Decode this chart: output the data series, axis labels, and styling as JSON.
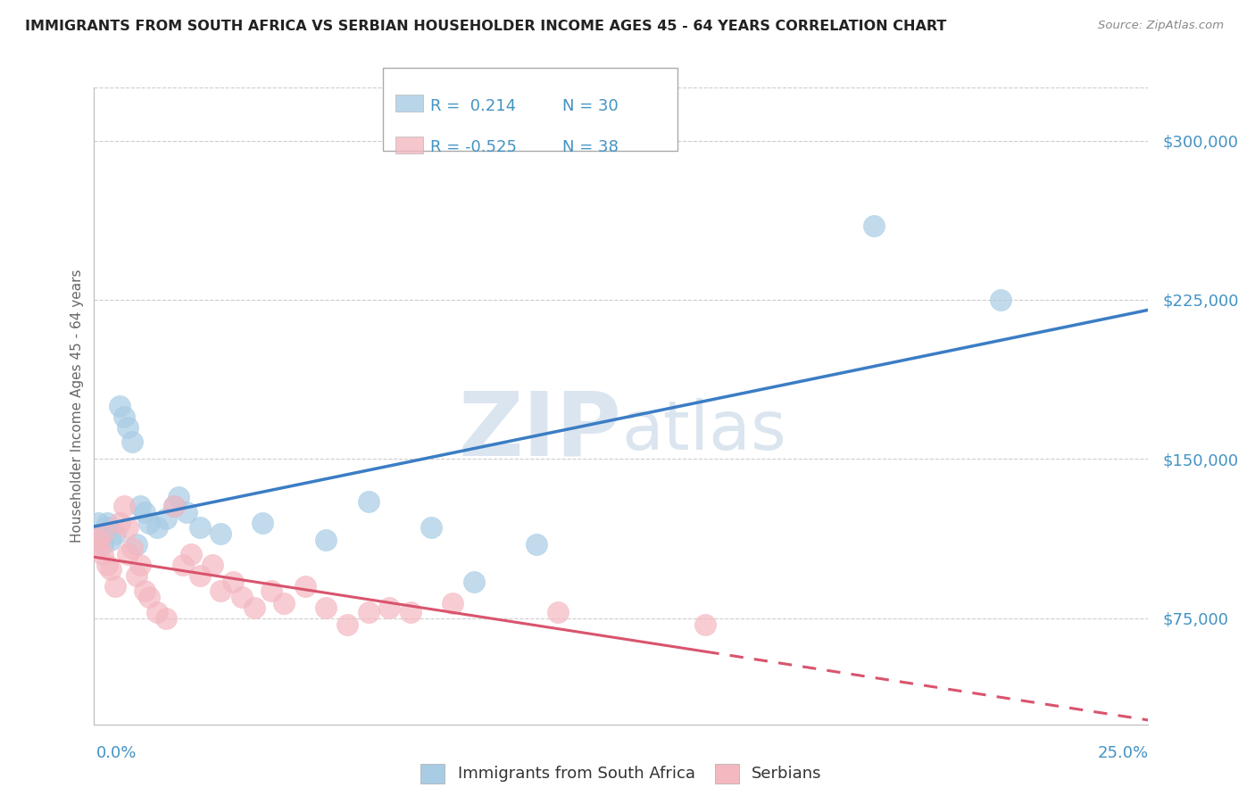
{
  "title": "IMMIGRANTS FROM SOUTH AFRICA VS SERBIAN HOUSEHOLDER INCOME AGES 45 - 64 YEARS CORRELATION CHART",
  "source": "Source: ZipAtlas.com",
  "ylabel": "Householder Income Ages 45 - 64 years",
  "xlim": [
    0.0,
    0.25
  ],
  "ylim": [
    25000,
    325000
  ],
  "yticks": [
    75000,
    150000,
    225000,
    300000
  ],
  "ytick_labels": [
    "$75,000",
    "$150,000",
    "$225,000",
    "$300,000"
  ],
  "xtick_left_label": "0.0%",
  "xtick_right_label": "25.0%",
  "r_blue": "0.214",
  "n_blue": "30",
  "r_pink": "-0.525",
  "n_pink": "38",
  "blue_dot_color": "#a8cce4",
  "blue_line_color": "#3b7dc4",
  "pink_dot_color": "#f4b8c1",
  "pink_line_color": "#d9546e",
  "legend_label_blue": "Immigrants from South Africa",
  "legend_label_pink": "Serbians",
  "watermark_zip": "ZIP",
  "watermark_atlas": "atlas",
  "title_color": "#222222",
  "axis_label_color": "#4393c3",
  "ylabel_color": "#666666",
  "blue_scatter_x": [
    0.001,
    0.001,
    0.002,
    0.003,
    0.003,
    0.004,
    0.005,
    0.006,
    0.007,
    0.008,
    0.009,
    0.01,
    0.011,
    0.012,
    0.013,
    0.015,
    0.017,
    0.019,
    0.02,
    0.022,
    0.025,
    0.03,
    0.04,
    0.055,
    0.065,
    0.08,
    0.09,
    0.105,
    0.185,
    0.215
  ],
  "blue_scatter_y": [
    115000,
    120000,
    110000,
    120000,
    118000,
    112000,
    115000,
    175000,
    170000,
    165000,
    158000,
    110000,
    128000,
    125000,
    120000,
    118000,
    122000,
    128000,
    132000,
    125000,
    118000,
    115000,
    120000,
    112000,
    130000,
    118000,
    92000,
    110000,
    260000,
    225000
  ],
  "pink_scatter_x": [
    0.001,
    0.001,
    0.002,
    0.002,
    0.003,
    0.004,
    0.005,
    0.006,
    0.007,
    0.008,
    0.008,
    0.009,
    0.01,
    0.011,
    0.012,
    0.013,
    0.015,
    0.017,
    0.019,
    0.021,
    0.023,
    0.025,
    0.028,
    0.03,
    0.033,
    0.035,
    0.038,
    0.042,
    0.045,
    0.05,
    0.055,
    0.06,
    0.065,
    0.07,
    0.075,
    0.085,
    0.11,
    0.145
  ],
  "pink_scatter_y": [
    108000,
    112000,
    105000,
    115000,
    100000,
    98000,
    90000,
    120000,
    128000,
    118000,
    105000,
    108000,
    95000,
    100000,
    88000,
    85000,
    78000,
    75000,
    128000,
    100000,
    105000,
    95000,
    100000,
    88000,
    92000,
    85000,
    80000,
    88000,
    82000,
    90000,
    80000,
    72000,
    78000,
    80000,
    78000,
    82000,
    78000,
    72000
  ]
}
